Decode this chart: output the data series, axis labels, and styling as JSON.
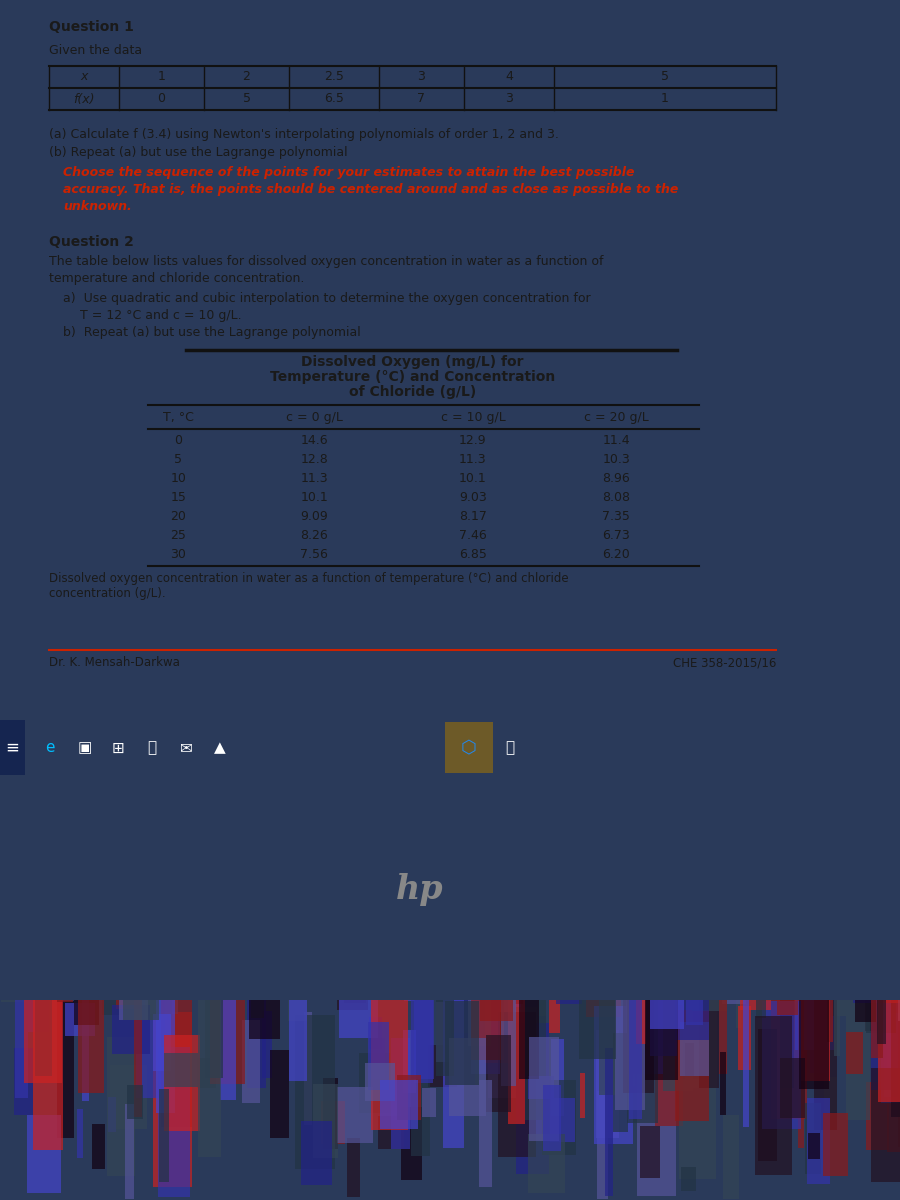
{
  "q1_title": "Question 1",
  "q1_given": "Given the data",
  "q1_table_x": [
    "x",
    "1",
    "2",
    "2.5",
    "3",
    "4",
    "5"
  ],
  "q1_table_fx": [
    "f(x)",
    "0",
    "5",
    "6.5",
    "7",
    "3",
    "1"
  ],
  "q1_part_a": "(a) Calculate f (3.4) using Newton's interpolating polynomials of order 1, 2 and 3.",
  "q1_part_b": "(b) Repeat (a) but use the Lagrange polynomial",
  "q1_italic_lines": [
    "Choose the sequence of the points for your estimates to attain the best possible",
    "accuracy. That is, the points should be centered around and as close as possible to the",
    "unknown."
  ],
  "q2_title": "Question 2",
  "q2_text1": "The table below lists values for dissolved oxygen concentration in water as a function of",
  "q2_text2": "temperature and chloride concentration.",
  "q2_part_a1": "a)  Use quadratic and cubic interpolation to determine the oxygen concentration for",
  "q2_part_a2": "T = 12 °C and c = 10 g/L.",
  "q2_part_b": "b)  Repeat (a) but use the Lagrange polynomial",
  "table2_title1": "Dissolved Oxygen (mg/L) for",
  "table2_title2": "Temperature (°C) and Concentration",
  "table2_title3": "of Chloride (g/L)",
  "table2_col_headers": [
    "T, °C",
    "c = 0 g/L",
    "c = 10 g/L",
    "c = 20 g/L"
  ],
  "table2_temps": [
    "0",
    "5",
    "10",
    "15",
    "20",
    "25",
    "30"
  ],
  "table2_c0": [
    "14.6",
    "12.8",
    "11.3",
    "10.1",
    "9.09",
    "8.26",
    "7.56"
  ],
  "table2_c10": [
    "12.9",
    "11.3",
    "10.1",
    "9.03",
    "8.17",
    "7.46",
    "6.85"
  ],
  "table2_c20": [
    "11.4",
    "10.3",
    "8.96",
    "8.08",
    "7.35",
    "6.73",
    "6.20"
  ],
  "table2_caption1": "Dissolved oxygen concentration in water as a function of temperature (°C) and chloride",
  "table2_caption2": "concentration (g/L).",
  "footer_left": "Dr. K. Mensah-Darkwa",
  "footer_right": "CHE 358-2015/16",
  "doc_bg": "#ede8dc",
  "monitor_surround": "#2a3a5a",
  "taskbar_bg": "#1a3060",
  "laptop_bezel": "#1a1a1a",
  "carpet_colors": [
    "#8b1a1a",
    "#2a2a6a",
    "#4a4a8a",
    "#6a6a9a"
  ],
  "text_black": "#1a1a1a",
  "text_red": "#cc2200",
  "line_dark": "#111111",
  "footer_line_red": "#cc2200"
}
